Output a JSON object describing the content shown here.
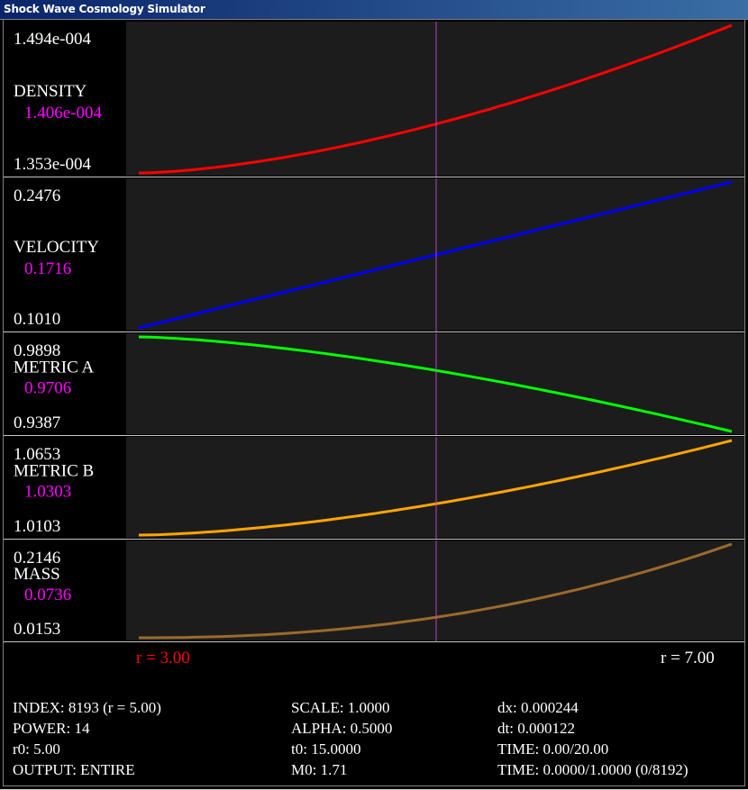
{
  "window": {
    "title": "Shock Wave Cosmology Simulator"
  },
  "colors": {
    "plot_background": "#1c1c1c",
    "separator": "#c8c8c8",
    "cursor": "#c040c0",
    "current_value_text": "#ff00ff",
    "r_left_text": "#ff0000"
  },
  "panels": [
    {
      "name": "DENSITY",
      "max": "1.494e-004",
      "current": "1.406e-004",
      "min": "1.353e-004",
      "color": "#ff0000",
      "curve": "convex_up"
    },
    {
      "name": "VELOCITY",
      "max": "0.2476",
      "current": "0.1716",
      "min": "0.1010",
      "color": "#0000ff",
      "curve": "linear_up"
    },
    {
      "name": "METRIC A",
      "max": "0.9898",
      "current": "0.9706",
      "min": "0.9387",
      "color": "#00ff00",
      "curve": "concave_down"
    },
    {
      "name": "METRIC B",
      "max": "1.0653",
      "current": "1.0303",
      "min": "1.0103",
      "color": "#ffa500",
      "curve": "convex_up"
    },
    {
      "name": "MASS",
      "max": "0.2146",
      "current": "0.0736",
      "min": "0.0153",
      "color": "#9b6a2c",
      "curve": "convex_up_strong"
    }
  ],
  "x_axis": {
    "r_left": "r = 3.00",
    "r_right": "r = 7.00",
    "cursor_fraction": 0.5
  },
  "info": {
    "col1": [
      "INDEX: 8193 (r = 5.00)",
      "POWER: 14",
      "r0: 5.00",
      "OUTPUT: ENTIRE"
    ],
    "col2": [
      "SCALE: 1.0000",
      "ALPHA: 0.5000",
      "t0: 15.0000",
      "M0: 1.71"
    ],
    "col3": [
      "dx: 0.000244",
      "dt: 0.000122",
      "TIME: 0.00/20.00",
      "TIME: 0.0000/1.0000 (0/8192)"
    ]
  }
}
